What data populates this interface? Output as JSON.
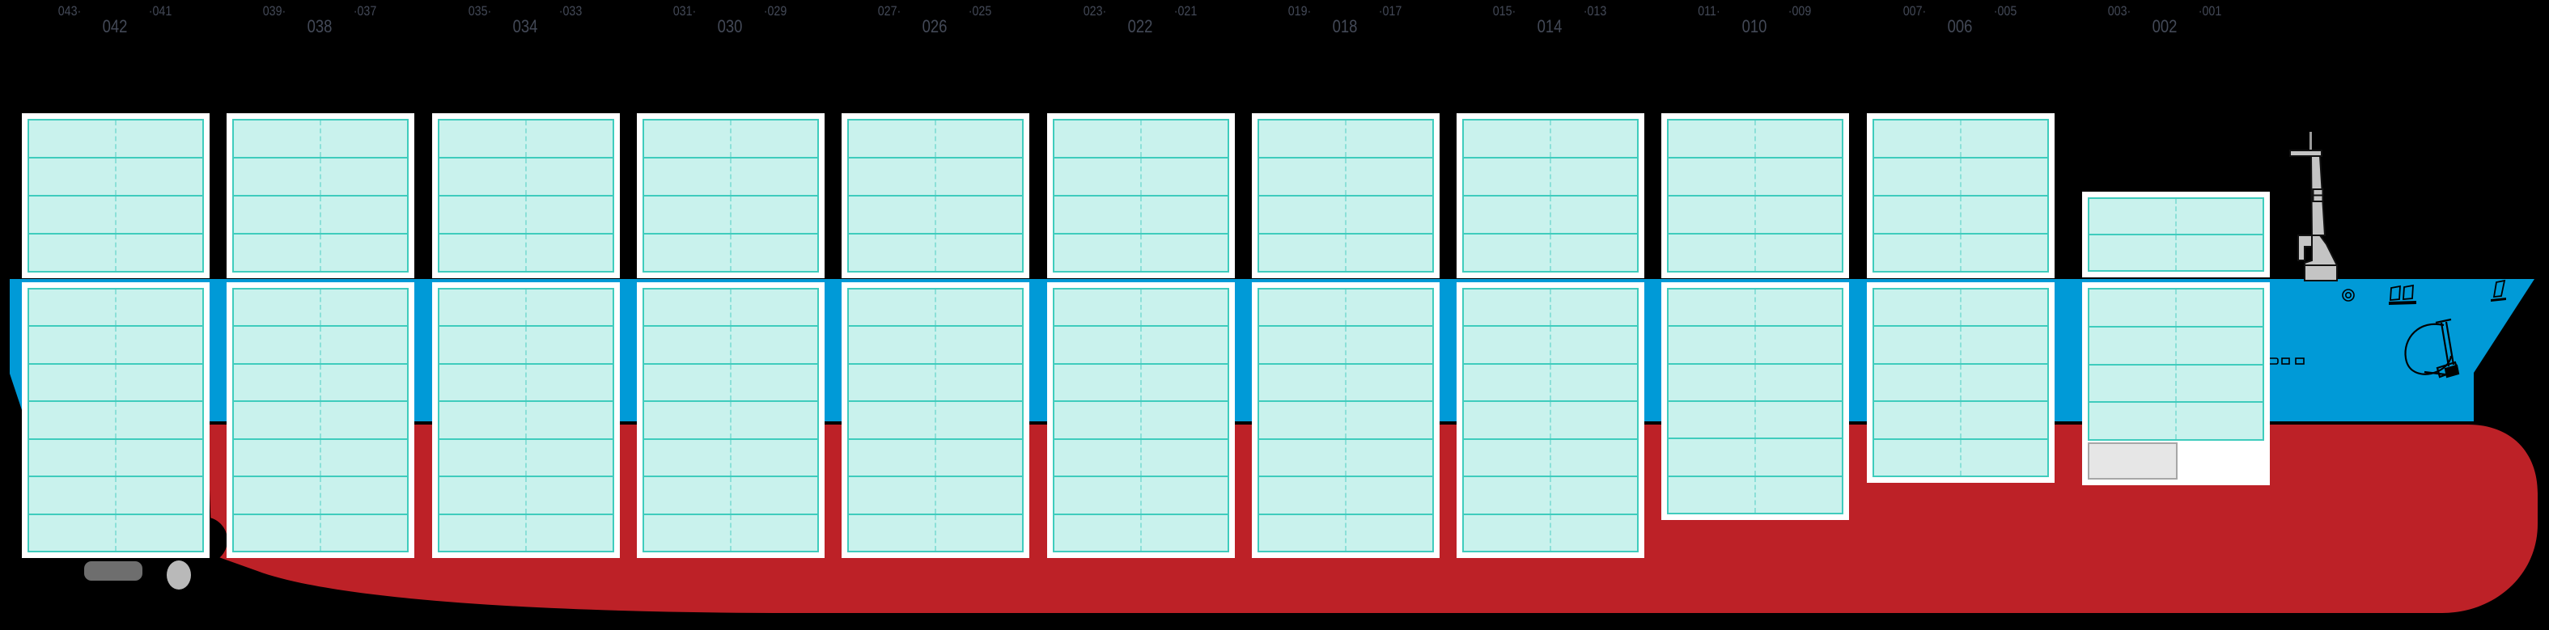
{
  "view": {
    "name": "container-ship-stowage-side-profile",
    "background": "#000000"
  },
  "colors": {
    "deck_band": "#009ad7",
    "hull": "#bd2127",
    "cell_fill": "#c9f2ed",
    "cell_border": "#3fccbd",
    "cell_divider": "#8ce0d8",
    "panel": "#ffffff",
    "label": "#434957",
    "blocked_fill": "#e6e6e6",
    "blocked_border": "#a6a6a6",
    "propeller_gray": "#6e6e6e",
    "rudder_gray": "#b9b9b9",
    "mast_gray": "#c4c4c4"
  },
  "icons": [
    "foremast-icon",
    "anchor-icon",
    "porthole-icon",
    "bridge-windows-icon",
    "flag-icon",
    "hull-vent-icon",
    "propeller-icon",
    "rudder-icon"
  ],
  "bays": [
    {
      "even": "042",
      "odd_left": "043·",
      "odd_right": "·041",
      "above_rows": 4,
      "below_rows": 7,
      "blocked_cell": false
    },
    {
      "even": "038",
      "odd_left": "039·",
      "odd_right": "·037",
      "above_rows": 4,
      "below_rows": 7,
      "blocked_cell": false
    },
    {
      "even": "034",
      "odd_left": "035·",
      "odd_right": "·033",
      "above_rows": 4,
      "below_rows": 7,
      "blocked_cell": false
    },
    {
      "even": "030",
      "odd_left": "031·",
      "odd_right": "·029",
      "above_rows": 4,
      "below_rows": 7,
      "blocked_cell": false
    },
    {
      "even": "026",
      "odd_left": "027·",
      "odd_right": "·025",
      "above_rows": 4,
      "below_rows": 7,
      "blocked_cell": false
    },
    {
      "even": "022",
      "odd_left": "023·",
      "odd_right": "·021",
      "above_rows": 4,
      "below_rows": 7,
      "blocked_cell": false
    },
    {
      "even": "018",
      "odd_left": "019·",
      "odd_right": "·017",
      "above_rows": 4,
      "below_rows": 7,
      "blocked_cell": false
    },
    {
      "even": "014",
      "odd_left": "015·",
      "odd_right": "·013",
      "above_rows": 4,
      "below_rows": 7,
      "blocked_cell": false
    },
    {
      "even": "010",
      "odd_left": "011·",
      "odd_right": "·009",
      "above_rows": 4,
      "below_rows": 6,
      "blocked_cell": false
    },
    {
      "even": "006",
      "odd_left": "007·",
      "odd_right": "·005",
      "above_rows": 4,
      "below_rows": 5,
      "blocked_cell": false
    },
    {
      "even": "002",
      "odd_left": "003·",
      "odd_right": "·001",
      "above_rows": 2,
      "below_rows": 4,
      "blocked_cell": true
    }
  ],
  "slots_per_row": 2
}
